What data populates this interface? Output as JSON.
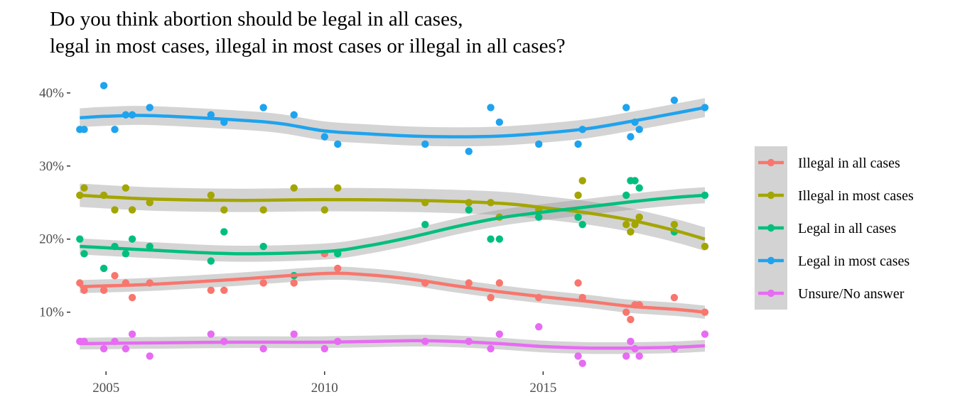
{
  "chart_data": {
    "type": "scatter",
    "title_line1": "Do you think abortion should be legal in all cases,",
    "title_line2": "legal in most cases, illegal in most cases or illegal in all cases?",
    "xlabel": "",
    "ylabel": "",
    "xlim": [
      2004.2,
      2018.7
    ],
    "ylim": [
      2.0,
      43.0
    ],
    "x_ticks": [
      2005,
      2010,
      2015
    ],
    "x_tick_labels": [
      "2005",
      "2010",
      "2015"
    ],
    "y_ticks": [
      10,
      20,
      30,
      40
    ],
    "y_tick_labels": [
      "10%",
      "20%",
      "30%",
      "40%"
    ],
    "legend_position": "right",
    "series": [
      {
        "name": "Illegal in all cases",
        "color": "#F8766D",
        "points": [
          [
            2004.4,
            14
          ],
          [
            2004.5,
            13
          ],
          [
            2004.95,
            13
          ],
          [
            2005.2,
            15
          ],
          [
            2005.45,
            14
          ],
          [
            2005.6,
            12
          ],
          [
            2006.0,
            14
          ],
          [
            2007.4,
            13
          ],
          [
            2007.7,
            13
          ],
          [
            2008.6,
            14
          ],
          [
            2009.3,
            14
          ],
          [
            2010.0,
            18
          ],
          [
            2010.3,
            16
          ],
          [
            2012.3,
            14
          ],
          [
            2013.3,
            14
          ],
          [
            2013.8,
            12
          ],
          [
            2014.0,
            14
          ],
          [
            2014.9,
            12
          ],
          [
            2015.8,
            14
          ],
          [
            2015.9,
            12
          ],
          [
            2016.9,
            10
          ],
          [
            2017.0,
            9
          ],
          [
            2017.1,
            11
          ],
          [
            2017.2,
            11
          ],
          [
            2018.0,
            12
          ],
          [
            2018.7,
            10
          ]
        ],
        "smooth": [
          [
            2004.4,
            13.5
          ],
          [
            2006,
            13.8
          ],
          [
            2008,
            14.5
          ],
          [
            2010,
            15.3
          ],
          [
            2011,
            15.1
          ],
          [
            2012,
            14.5
          ],
          [
            2013,
            13.6
          ],
          [
            2014,
            12.8
          ],
          [
            2015,
            12.1
          ],
          [
            2016,
            11.5
          ],
          [
            2017,
            10.8
          ],
          [
            2018,
            10.4
          ],
          [
            2018.7,
            10
          ]
        ],
        "band": 0.9
      },
      {
        "name": "Illegal in most cases",
        "color": "#A3A500",
        "points": [
          [
            2004.4,
            26
          ],
          [
            2004.5,
            27
          ],
          [
            2004.95,
            26
          ],
          [
            2005.2,
            24
          ],
          [
            2005.45,
            27
          ],
          [
            2005.6,
            24
          ],
          [
            2006.0,
            25
          ],
          [
            2007.4,
            26
          ],
          [
            2007.7,
            24
          ],
          [
            2008.6,
            24
          ],
          [
            2009.3,
            27
          ],
          [
            2010.0,
            24
          ],
          [
            2010.3,
            27
          ],
          [
            2012.3,
            25
          ],
          [
            2013.3,
            25
          ],
          [
            2013.8,
            25
          ],
          [
            2014.0,
            23
          ],
          [
            2014.9,
            24
          ],
          [
            2015.8,
            26
          ],
          [
            2015.9,
            28
          ],
          [
            2016.9,
            22
          ],
          [
            2017.0,
            21
          ],
          [
            2017.1,
            22
          ],
          [
            2017.2,
            23
          ],
          [
            2018.0,
            22
          ],
          [
            2018.7,
            19
          ]
        ],
        "smooth": [
          [
            2004.4,
            26
          ],
          [
            2006,
            25.5
          ],
          [
            2008,
            25.3
          ],
          [
            2010,
            25.4
          ],
          [
            2012,
            25.3
          ],
          [
            2014,
            24.9
          ],
          [
            2015,
            24.3
          ],
          [
            2016,
            23.6
          ],
          [
            2017,
            22.6
          ],
          [
            2018,
            21.2
          ],
          [
            2018.7,
            20
          ]
        ],
        "band": 1.6
      },
      {
        "name": "Legal in all cases",
        "color": "#00BF7D",
        "points": [
          [
            2004.4,
            20
          ],
          [
            2004.5,
            18
          ],
          [
            2004.95,
            16
          ],
          [
            2005.2,
            19
          ],
          [
            2005.45,
            18
          ],
          [
            2005.6,
            20
          ],
          [
            2006.0,
            19
          ],
          [
            2007.4,
            17
          ],
          [
            2007.7,
            21
          ],
          [
            2008.6,
            19
          ],
          [
            2009.3,
            15
          ],
          [
            2010.3,
            18
          ],
          [
            2012.3,
            22
          ],
          [
            2013.3,
            24
          ],
          [
            2013.8,
            20
          ],
          [
            2014.0,
            20
          ],
          [
            2014.9,
            23
          ],
          [
            2015.8,
            23
          ],
          [
            2015.9,
            22
          ],
          [
            2016.9,
            26
          ],
          [
            2017.0,
            28
          ],
          [
            2017.1,
            28
          ],
          [
            2017.2,
            27
          ],
          [
            2018.0,
            21
          ],
          [
            2018.7,
            26
          ]
        ],
        "smooth": [
          [
            2004.4,
            19
          ],
          [
            2006,
            18.5
          ],
          [
            2008,
            18
          ],
          [
            2010,
            18.3
          ],
          [
            2011,
            19.1
          ],
          [
            2012,
            20.3
          ],
          [
            2013,
            21.7
          ],
          [
            2014,
            22.9
          ],
          [
            2015,
            23.7
          ],
          [
            2016,
            24.4
          ],
          [
            2017,
            25.1
          ],
          [
            2018,
            25.7
          ],
          [
            2018.7,
            26
          ]
        ],
        "band": 1.1
      },
      {
        "name": "Legal in most cases",
        "color": "#1FA3EE",
        "points": [
          [
            2004.4,
            35
          ],
          [
            2004.5,
            35
          ],
          [
            2004.95,
            41
          ],
          [
            2005.2,
            35
          ],
          [
            2005.45,
            37
          ],
          [
            2005.6,
            37
          ],
          [
            2006.0,
            38
          ],
          [
            2007.4,
            37
          ],
          [
            2007.7,
            36
          ],
          [
            2008.6,
            38
          ],
          [
            2009.3,
            37
          ],
          [
            2010.0,
            34
          ],
          [
            2010.3,
            33
          ],
          [
            2012.3,
            33
          ],
          [
            2013.3,
            32
          ],
          [
            2013.8,
            38
          ],
          [
            2014.0,
            36
          ],
          [
            2014.9,
            33
          ],
          [
            2015.8,
            33
          ],
          [
            2015.9,
            35
          ],
          [
            2016.9,
            38
          ],
          [
            2017.0,
            34
          ],
          [
            2017.1,
            36
          ],
          [
            2017.2,
            35
          ],
          [
            2018.0,
            39
          ],
          [
            2018.7,
            38
          ]
        ],
        "smooth": [
          [
            2004.4,
            36.6
          ],
          [
            2005,
            36.8
          ],
          [
            2006,
            36.9
          ],
          [
            2008,
            36.3
          ],
          [
            2009,
            35.8
          ],
          [
            2010,
            34.8
          ],
          [
            2011,
            34.4
          ],
          [
            2012,
            34.1
          ],
          [
            2013,
            34.0
          ],
          [
            2014,
            34.1
          ],
          [
            2015,
            34.5
          ],
          [
            2016,
            35.1
          ],
          [
            2017,
            36.1
          ],
          [
            2018,
            37.2
          ],
          [
            2018.7,
            38
          ]
        ],
        "band": 1.3
      },
      {
        "name": "Unsure/No answer",
        "color": "#E76BF3",
        "points": [
          [
            2004.4,
            6
          ],
          [
            2004.5,
            6
          ],
          [
            2004.95,
            5
          ],
          [
            2005.2,
            6
          ],
          [
            2005.45,
            5
          ],
          [
            2005.6,
            7
          ],
          [
            2006.0,
            4
          ],
          [
            2007.4,
            7
          ],
          [
            2007.7,
            6
          ],
          [
            2008.6,
            5
          ],
          [
            2009.3,
            7
          ],
          [
            2010.0,
            5
          ],
          [
            2010.3,
            6
          ],
          [
            2012.3,
            6
          ],
          [
            2013.3,
            6
          ],
          [
            2013.8,
            5
          ],
          [
            2014.0,
            7
          ],
          [
            2014.9,
            8
          ],
          [
            2015.8,
            4
          ],
          [
            2015.9,
            3
          ],
          [
            2016.9,
            4
          ],
          [
            2017.0,
            6
          ],
          [
            2017.1,
            5
          ],
          [
            2017.2,
            4
          ],
          [
            2018.0,
            5
          ],
          [
            2018.7,
            7
          ]
        ],
        "smooth": [
          [
            2004.4,
            5.7
          ],
          [
            2006,
            5.8
          ],
          [
            2008,
            5.9
          ],
          [
            2010,
            5.9
          ],
          [
            2012,
            6.1
          ],
          [
            2013,
            6.0
          ],
          [
            2014,
            5.7
          ],
          [
            2015,
            5.3
          ],
          [
            2016,
            5.1
          ],
          [
            2017,
            5.1
          ],
          [
            2018,
            5.2
          ],
          [
            2018.7,
            5.4
          ]
        ],
        "band": 0.8
      }
    ]
  }
}
